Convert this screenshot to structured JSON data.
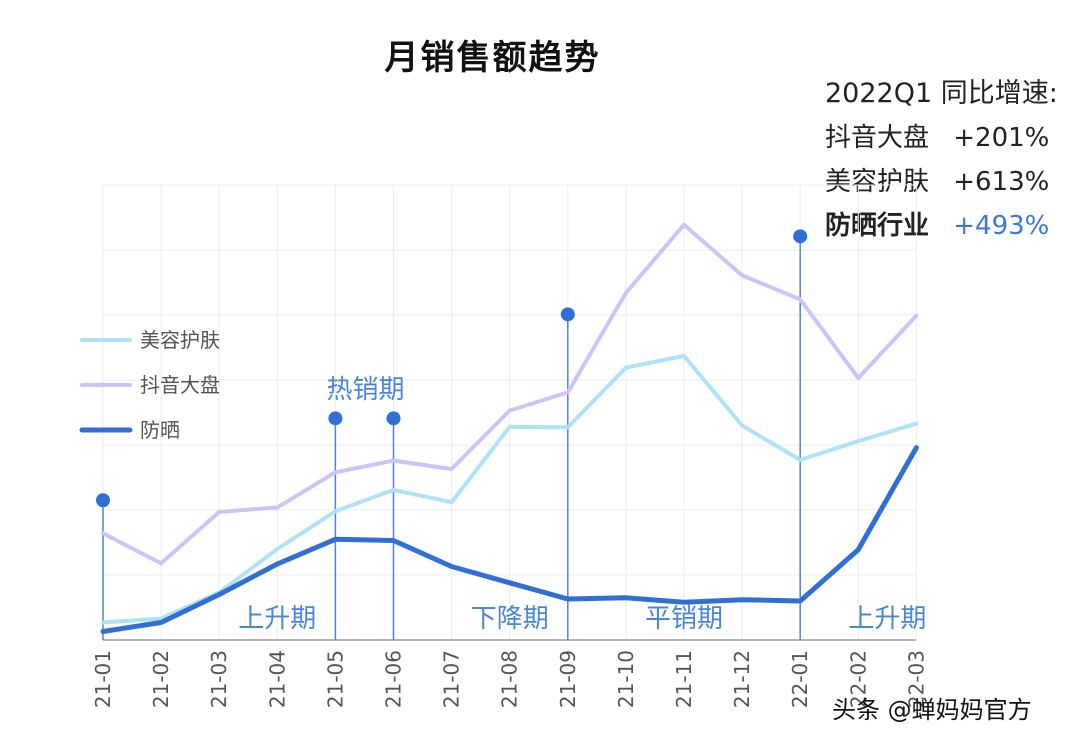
{
  "title": "月销售额趋势",
  "stats": {
    "heading": "2022Q1 同比增速:",
    "rows": [
      {
        "name": "抖音大盘",
        "value": "+201%",
        "bold": false,
        "color": "#222222"
      },
      {
        "name": "美容护肤",
        "value": "+613%",
        "bold": false,
        "color": "#222222"
      },
      {
        "name": "防晒行业",
        "value": "+493%",
        "bold": true,
        "color": "#3b78d8"
      }
    ]
  },
  "chart_data": {
    "type": "line",
    "categories": [
      "21-01",
      "21-02",
      "21-03",
      "21-04",
      "21-05",
      "21-06",
      "21-07",
      "21-08",
      "21-09",
      "21-10",
      "21-11",
      "21-12",
      "22-01",
      "22-02",
      "22-03"
    ],
    "ylim": [
      0,
      700
    ],
    "grid": true,
    "legend_position": "left",
    "series": [
      {
        "name": "美容护肤",
        "color": "#aee3f7",
        "width": 4,
        "values": [
          27,
          33,
          73,
          140,
          198,
          231,
          212,
          328,
          327,
          419,
          437,
          330,
          277,
          306,
          333
        ]
      },
      {
        "name": "抖音大盘",
        "color": "#cdc3f8",
        "width": 4,
        "values": [
          164,
          118,
          197,
          204,
          258,
          276,
          263,
          353,
          381,
          534,
          639,
          561,
          524,
          403,
          499
        ]
      },
      {
        "name": "防晒",
        "color": "#2f6fd6",
        "width": 5,
        "values": [
          13,
          27,
          70,
          117,
          155,
          153,
          113,
          88,
          63,
          65,
          58,
          62,
          60,
          139,
          296
        ]
      }
    ],
    "phase_labels": [
      {
        "text": "上升期",
        "x": 3
      },
      {
        "text": "下降期",
        "x": 7
      },
      {
        "text": "平销期",
        "x": 10
      },
      {
        "text": "上升期",
        "x": 13.5
      }
    ],
    "peak_label": {
      "text": "热销期",
      "x": 5
    },
    "markers": [
      {
        "x": 0,
        "y": 215
      },
      {
        "x": 4,
        "y": 341
      },
      {
        "x": 5,
        "y": 341
      },
      {
        "x": 8,
        "y": 501
      },
      {
        "x": 12,
        "y": 621
      }
    ]
  },
  "watermark": "头条 @蝉妈妈官方"
}
